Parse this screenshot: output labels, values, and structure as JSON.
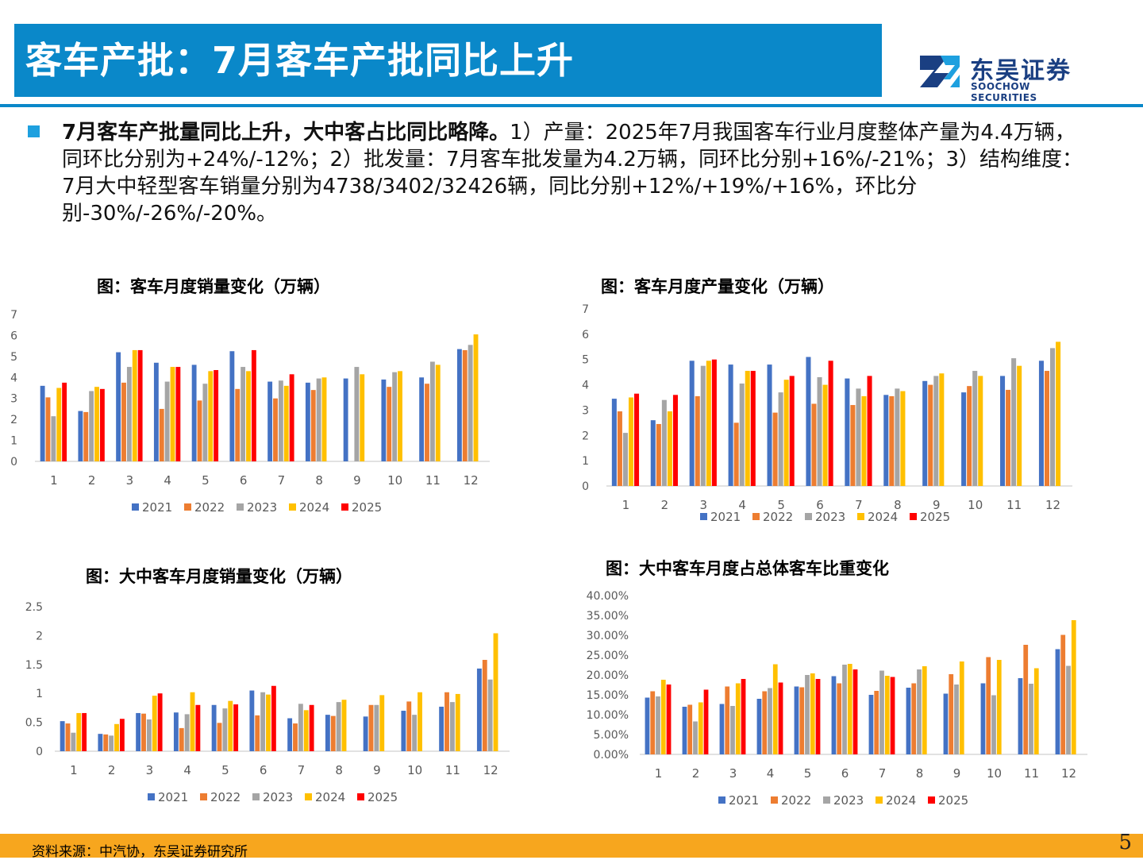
{
  "header": {
    "title": "客车产批：7月客车产批同比上升"
  },
  "logo": {
    "cn": "东吴证券",
    "en": "SOOCHOW SECURITIES"
  },
  "summary": {
    "bold": "7月客车产批量同比上升，大中客占比同比略降。",
    "text": "1）产量：2025年7月我国客车行业月度整体产量为4.4万辆，同环比分别为+24%/-12%；2）批发量：7月客车批发量为4.2万辆，同环比分别+16%/-21%；3）结构维度：7月大中轻型客车销量分别为4738/3402/32426辆，同比分别+12%/+19%/+16%，环比分别-30%/-26%/-20%。"
  },
  "colors": {
    "2021": "#4472c4",
    "2022": "#ed7d31",
    "2023": "#a5a5a5",
    "2024": "#ffc000",
    "2025": "#ff0000"
  },
  "chart_data": [
    {
      "id": "sales",
      "type": "bar",
      "title": "图：客车月度销量变化（万辆）",
      "categories": [
        "1",
        "2",
        "3",
        "4",
        "5",
        "6",
        "7",
        "8",
        "9",
        "10",
        "11",
        "12"
      ],
      "ylim": [
        0,
        7
      ],
      "yticks": [
        "0",
        "1",
        "2",
        "3",
        "4",
        "5",
        "6",
        "7"
      ],
      "series": [
        {
          "name": "2021",
          "values": [
            3.6,
            2.4,
            5.2,
            4.7,
            4.6,
            5.25,
            3.8,
            3.75,
            3.95,
            3.9,
            4.0,
            5.35
          ]
        },
        {
          "name": "2022",
          "values": [
            3.05,
            2.35,
            3.75,
            2.5,
            2.9,
            3.45,
            3.0,
            3.4,
            null,
            3.55,
            3.7,
            5.3
          ]
        },
        {
          "name": "2023",
          "values": [
            2.15,
            3.35,
            4.5,
            3.8,
            3.7,
            4.5,
            3.85,
            3.95,
            4.5,
            4.25,
            4.75,
            5.55
          ]
        },
        {
          "name": "2024",
          "values": [
            3.5,
            3.55,
            5.3,
            4.5,
            4.3,
            4.3,
            3.6,
            4.0,
            4.15,
            4.3,
            4.6,
            6.05
          ]
        },
        {
          "name": "2025",
          "values": [
            3.75,
            3.45,
            5.3,
            4.5,
            4.35,
            5.3,
            4.15,
            null,
            null,
            null,
            null,
            null
          ]
        }
      ]
    },
    {
      "id": "production",
      "type": "bar",
      "title": "图：客车月度产量变化（万辆）",
      "categories": [
        "1",
        "2",
        "3",
        "4",
        "5",
        "6",
        "7",
        "8",
        "9",
        "10",
        "11",
        "12"
      ],
      "ylim": [
        0,
        7
      ],
      "yticks": [
        "0",
        "1",
        "2",
        "3",
        "4",
        "5",
        "6",
        "7"
      ],
      "series": [
        {
          "name": "2021",
          "values": [
            3.45,
            2.6,
            4.95,
            4.8,
            4.8,
            5.1,
            4.25,
            3.6,
            4.15,
            3.7,
            4.35,
            4.95
          ]
        },
        {
          "name": "2022",
          "values": [
            2.95,
            2.45,
            3.55,
            2.5,
            2.9,
            3.25,
            3.2,
            3.55,
            4.0,
            3.95,
            3.8,
            4.55
          ]
        },
        {
          "name": "2023",
          "values": [
            2.1,
            3.4,
            4.75,
            4.05,
            3.7,
            4.3,
            3.85,
            3.85,
            4.35,
            4.55,
            5.05,
            5.45
          ]
        },
        {
          "name": "2024",
          "values": [
            3.5,
            2.95,
            4.95,
            4.55,
            4.2,
            4.0,
            3.55,
            3.75,
            4.45,
            4.35,
            4.75,
            5.7
          ]
        },
        {
          "name": "2025",
          "values": [
            3.65,
            3.6,
            5.0,
            4.55,
            4.35,
            4.95,
            4.35,
            null,
            null,
            null,
            null,
            null
          ]
        }
      ]
    },
    {
      "id": "large_mid_sales",
      "type": "bar",
      "title": "图：大中客车月度销量变化（万辆）",
      "categories": [
        "1",
        "2",
        "3",
        "4",
        "5",
        "6",
        "7",
        "8",
        "9",
        "10",
        "11",
        "12"
      ],
      "ylim": [
        0,
        2.5
      ],
      "yticks": [
        "0",
        "0.5",
        "1",
        "1.5",
        "2",
        "2.5"
      ],
      "series": [
        {
          "name": "2021",
          "values": [
            0.52,
            0.3,
            0.66,
            0.67,
            0.8,
            1.05,
            0.57,
            0.63,
            0.6,
            0.7,
            0.77,
            1.43
          ]
        },
        {
          "name": "2022",
          "values": [
            0.48,
            0.29,
            0.65,
            0.4,
            0.49,
            0.62,
            0.48,
            0.61,
            0.8,
            0.86,
            1.02,
            1.58
          ]
        },
        {
          "name": "2023",
          "values": [
            0.32,
            0.27,
            0.55,
            0.64,
            0.74,
            1.02,
            0.82,
            0.85,
            0.8,
            0.63,
            0.85,
            1.24
          ]
        },
        {
          "name": "2024",
          "values": [
            0.66,
            0.47,
            0.96,
            1.02,
            0.87,
            0.98,
            0.71,
            0.89,
            0.97,
            1.02,
            0.99,
            2.04
          ]
        },
        {
          "name": "2025",
          "values": [
            0.66,
            0.56,
            1.0,
            0.8,
            0.81,
            1.13,
            0.8,
            null,
            null,
            null,
            null,
            null
          ]
        }
      ]
    },
    {
      "id": "large_mid_share",
      "type": "bar",
      "title": "图：大中客车月度占总体客车比重变化",
      "categories": [
        "1",
        "2",
        "3",
        "4",
        "5",
        "6",
        "7",
        "8",
        "9",
        "10",
        "11",
        "12"
      ],
      "ylim": [
        0,
        40
      ],
      "yticks": [
        "0.00%",
        "5.00%",
        "10.00%",
        "15.00%",
        "20.00%",
        "25.00%",
        "30.00%",
        "35.00%",
        "40.00%"
      ],
      "series": [
        {
          "name": "2021",
          "values": [
            14.3,
            12.0,
            12.7,
            14.0,
            17.1,
            19.7,
            15.0,
            16.8,
            15.3,
            17.9,
            19.2,
            26.5
          ]
        },
        {
          "name": "2022",
          "values": [
            15.9,
            12.5,
            17.1,
            15.9,
            16.9,
            17.9,
            16.0,
            17.9,
            20.2,
            24.5,
            27.6,
            30.1
          ]
        },
        {
          "name": "2023",
          "values": [
            14.6,
            8.3,
            12.2,
            16.7,
            20.0,
            22.6,
            21.1,
            21.4,
            17.6,
            14.9,
            17.8,
            22.3
          ]
        },
        {
          "name": "2024",
          "values": [
            18.8,
            13.1,
            17.9,
            22.7,
            20.4,
            22.8,
            19.8,
            22.2,
            23.4,
            23.8,
            21.7,
            33.8
          ]
        },
        {
          "name": "2025",
          "values": [
            17.6,
            16.3,
            19.0,
            18.1,
            19.0,
            21.4,
            19.5,
            null,
            null,
            null,
            null,
            null
          ]
        }
      ]
    }
  ],
  "footer": {
    "source": "资料来源：中汽协，东吴证券研究所",
    "page": "5"
  }
}
